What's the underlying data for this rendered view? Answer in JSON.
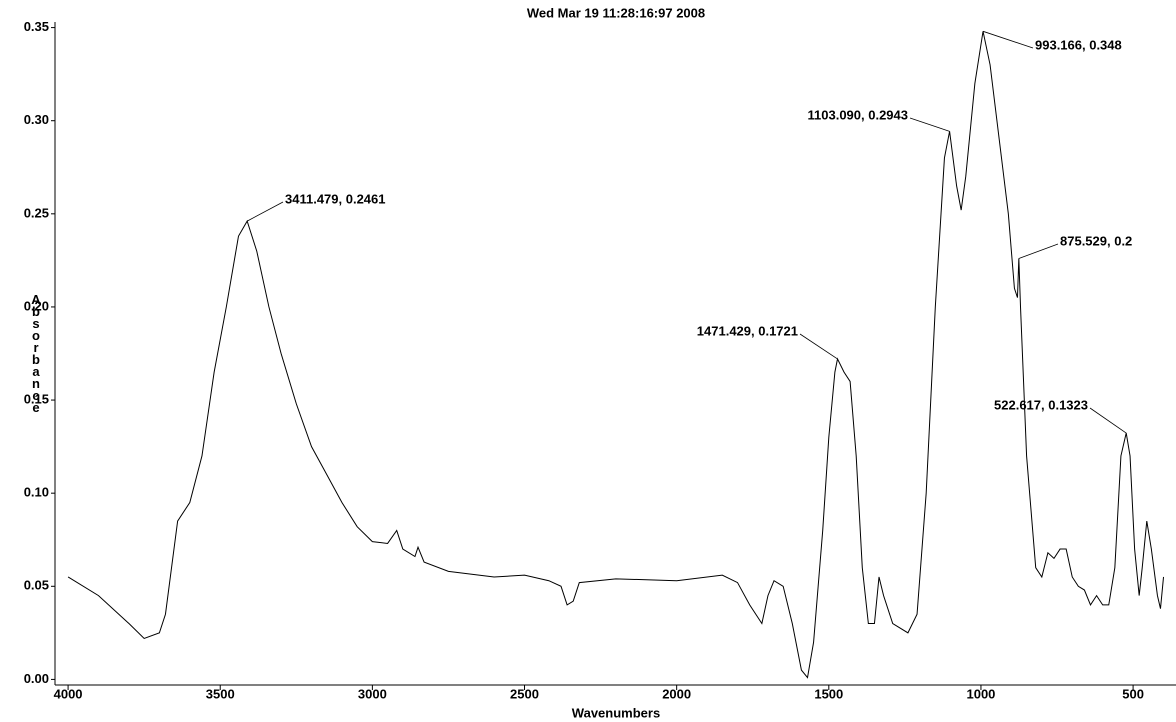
{
  "chart_data": {
    "type": "line",
    "title": "Wed Mar 19 11:28:16:97 2008",
    "x_label": "Wavenumbers",
    "y_label": "Absorbance",
    "xlim": [
      4043,
      359
    ],
    "xticks": [
      4000,
      3500,
      3000,
      2500,
      2000,
      1500,
      1000,
      500
    ],
    "ylim": [
      -0.003,
      0.353
    ],
    "yticks": [
      {
        "value": 0,
        "label": "0.00"
      },
      {
        "value": 0.05,
        "label": "0.05"
      },
      {
        "value": 0.1,
        "label": "0.10"
      },
      {
        "value": 0.15,
        "label": "0.15"
      },
      {
        "value": 0.2,
        "label": "0.20"
      },
      {
        "value": 0.25,
        "label": "0.25"
      },
      {
        "value": 0.3,
        "label": "0.30"
      },
      {
        "value": 0.35,
        "label": "0.35"
      }
    ],
    "color": "#000000",
    "x": [
      4000,
      3900,
      3800,
      3750,
      3700,
      3680,
      3660,
      3640,
      3600,
      3560,
      3520,
      3480,
      3440,
      3411.479,
      3380,
      3340,
      3300,
      3250,
      3200,
      3150,
      3100,
      3050,
      3000,
      2950,
      2920,
      2900,
      2860,
      2850,
      2830,
      2750,
      2600,
      2500,
      2420,
      2380,
      2360,
      2340,
      2320,
      2200,
      2000,
      1850,
      1800,
      1760,
      1720,
      1700,
      1680,
      1650,
      1620,
      1590,
      1570,
      1550,
      1520,
      1500,
      1480,
      1471.429,
      1450,
      1430,
      1410,
      1390,
      1370,
      1350,
      1335,
      1320,
      1290,
      1240,
      1210,
      1180,
      1150,
      1120,
      1103.09,
      1080,
      1065,
      1050,
      1020,
      993.166,
      970,
      940,
      910,
      890,
      880,
      875.529,
      870,
      850,
      820,
      800,
      780,
      760,
      740,
      720,
      700,
      680,
      660,
      640,
      620,
      600,
      580,
      560,
      540,
      522.617,
      510,
      495,
      480,
      470,
      455,
      440,
      420,
      410,
      400
    ],
    "values": [
      0.055,
      0.045,
      0.03,
      0.022,
      0.025,
      0.035,
      0.06,
      0.085,
      0.095,
      0.12,
      0.165,
      0.2,
      0.238,
      0.2461,
      0.23,
      0.2,
      0.175,
      0.148,
      0.125,
      0.11,
      0.095,
      0.082,
      0.074,
      0.073,
      0.08,
      0.07,
      0.066,
      0.071,
      0.063,
      0.058,
      0.055,
      0.056,
      0.053,
      0.05,
      0.04,
      0.042,
      0.052,
      0.054,
      0.053,
      0.056,
      0.052,
      0.04,
      0.03,
      0.045,
      0.053,
      0.05,
      0.03,
      0.005,
      0.001,
      0.02,
      0.08,
      0.13,
      0.165,
      0.1721,
      0.165,
      0.16,
      0.12,
      0.06,
      0.03,
      0.03,
      0.055,
      0.045,
      0.03,
      0.025,
      0.035,
      0.1,
      0.2,
      0.28,
      0.2943,
      0.265,
      0.252,
      0.27,
      0.32,
      0.348,
      0.33,
      0.29,
      0.25,
      0.21,
      0.205,
      0.226,
      0.2,
      0.12,
      0.06,
      0.055,
      0.068,
      0.065,
      0.07,
      0.07,
      0.055,
      0.05,
      0.048,
      0.04,
      0.045,
      0.04,
      0.04,
      0.06,
      0.12,
      0.1323,
      0.12,
      0.07,
      0.045,
      0.06,
      0.085,
      0.07,
      0.045,
      0.038,
      0.055
    ],
    "annotations": [
      {
        "text": "3411.479, 0.2461",
        "x": 3411.479,
        "y": 0.2461
      },
      {
        "text": "1103.090, 0.2943",
        "x": 1103.09,
        "y": 0.2943
      },
      {
        "text": "993.166, 0.348",
        "x": 993.166,
        "y": 0.348
      },
      {
        "text": "875.529, 0.2",
        "x": 875.529,
        "y": 0.226
      },
      {
        "text": "1471.429, 0.1721",
        "x": 1471.429,
        "y": 0.1721
      },
      {
        "text": "522.617, 0.1323",
        "x": 522.617,
        "y": 0.1323
      }
    ]
  }
}
